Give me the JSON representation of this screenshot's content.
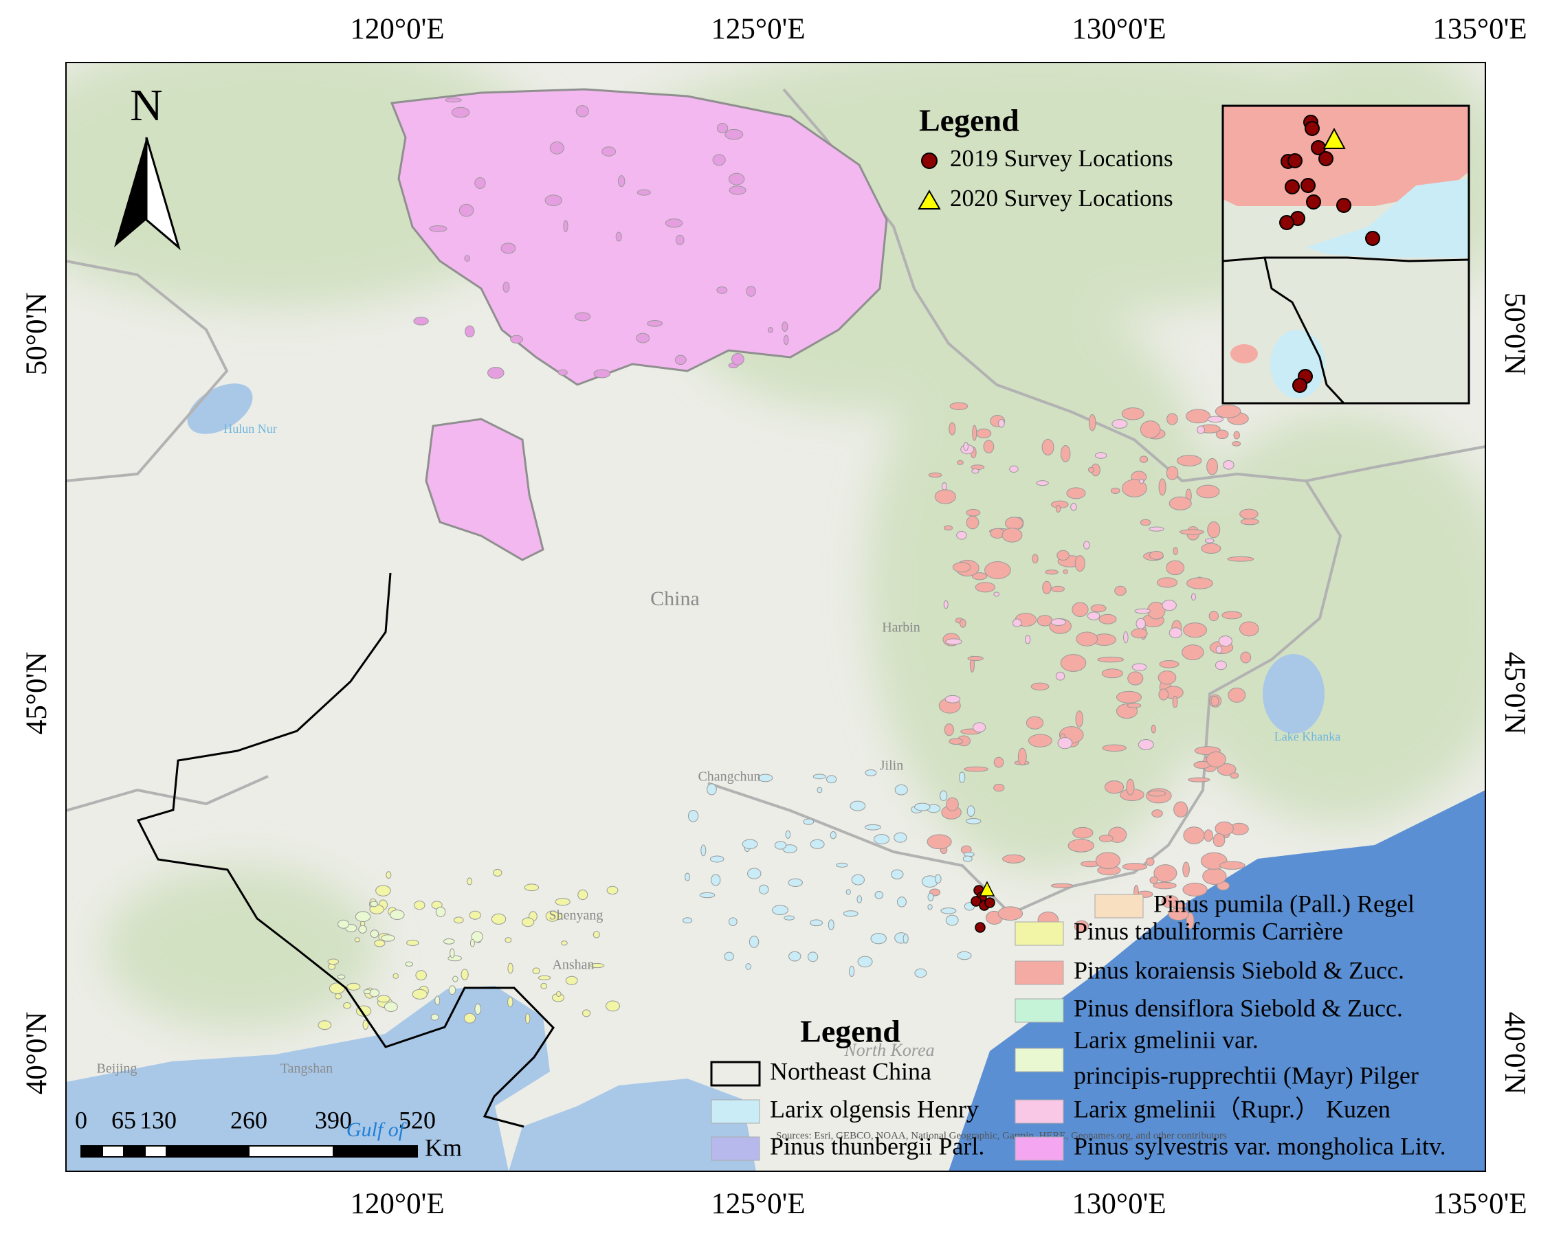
{
  "map": {
    "north_arrow": "N",
    "x_ticks": [
      "120°0'E",
      "125°0'E",
      "130°0'E",
      "135°0'E"
    ],
    "y_ticks": [
      "50°0'N",
      "45°0'N",
      "40°0'N"
    ],
    "places": [
      {
        "label": "China",
        "color": "#8a8a8a"
      },
      {
        "label": "Harbin",
        "color": "#8a8a8a"
      },
      {
        "label": "Changchun",
        "color": "#8a8a8a"
      },
      {
        "label": "Jilin",
        "color": "#8a8a8a"
      },
      {
        "label": "Shenyang",
        "color": "#8a8a8a"
      },
      {
        "label": "Anshan",
        "color": "#8a8a8a"
      },
      {
        "label": "Hulun Nur",
        "color": "#6fb6de"
      },
      {
        "label": "Lake Khanka",
        "color": "#6fb6de"
      },
      {
        "label": "Beijing",
        "color": "#8a8a8a"
      },
      {
        "label": "Tangshan",
        "color": "#8a8a8a"
      },
      {
        "label": "Gulf of",
        "color": "#1f7fd6"
      },
      {
        "label": "North Korea",
        "color": "#9a9a9a"
      }
    ],
    "legend_points": {
      "title": "Legend",
      "items": [
        {
          "label": "2019 Survey Locations",
          "color": "#8b0000",
          "shape": "circle"
        },
        {
          "label": "2020 Survey Locations",
          "color": "#ffff00",
          "shape": "triangle"
        }
      ]
    },
    "legend_species": {
      "title": "Legend",
      "items": [
        {
          "lines": [
            "Northeast China"
          ],
          "color": "none"
        },
        {
          "lines": [
            "Larix olgensis Henry"
          ],
          "color": "#c9ecf7"
        },
        {
          "lines": [
            "Pinus thunbergii Parl."
          ],
          "color": "#b7b9ec"
        },
        {
          "lines": [
            "Pinus pumila (Pall.) Regel"
          ],
          "color": "#f8dfc0"
        },
        {
          "lines": [
            "Pinus tabuliformis Carrière"
          ],
          "color": "#f1f5a5"
        },
        {
          "lines": [
            "Pinus koraiensis Siebold & Zucc."
          ],
          "color": "#f4aba3"
        },
        {
          "lines": [
            "Pinus densiflora Siebold & Zucc."
          ],
          "color": "#c4f3d8"
        },
        {
          "lines": [
            "Larix gmelinii var.",
            "principis-rupprechtii (Mayr) Pilger"
          ],
          "color": "#e9f8d0"
        },
        {
          "lines": [
            "Larix gmelinii（Rupr.） Kuzen"
          ],
          "color": "#f8c8e6"
        },
        {
          "lines": [
            "Pinus sylvestris var. mongholica Litv."
          ],
          "color": "#f4a6f0"
        }
      ]
    },
    "scale_bar": {
      "labels": [
        "0",
        "65",
        "130",
        "260",
        "390",
        "520"
      ],
      "unit": "Km"
    },
    "sources": "Sources: Esri, GEBCO, NOAA, National Geographic, Garmin, HERE, Geonames.org, and other contributors"
  }
}
